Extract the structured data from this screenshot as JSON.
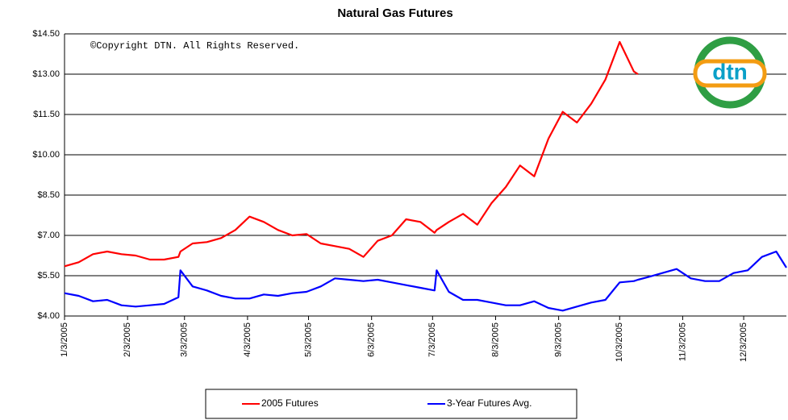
{
  "chart_data": {
    "type": "line",
    "title": "Natural Gas Futures",
    "annotation": "©Copyright DTN. All Rights Reserved.",
    "logo": "dtn",
    "x": [
      "1/3/2005",
      "1/10/2005",
      "1/17/2005",
      "1/24/2005",
      "1/31/2005",
      "2/7/2005",
      "2/14/2005",
      "2/21/2005",
      "2/28/2005",
      "3/1/2005",
      "3/7/2005",
      "3/14/2005",
      "3/21/2005",
      "3/28/2005",
      "4/4/2005",
      "4/11/2005",
      "4/18/2005",
      "4/25/2005",
      "5/2/2005",
      "5/9/2005",
      "5/16/2005",
      "5/23/2005",
      "5/30/2005",
      "6/6/2005",
      "6/13/2005",
      "6/20/2005",
      "6/27/2005",
      "7/4/2005",
      "7/5/2005",
      "7/11/2005",
      "7/18/2005",
      "7/25/2005",
      "8/1/2005",
      "8/8/2005",
      "8/15/2005",
      "8/22/2005",
      "8/29/2005",
      "9/5/2005",
      "9/12/2005",
      "9/19/2005",
      "9/26/2005",
      "10/3/2005",
      "10/10/2005",
      "10/12/2005",
      "10/17/2005",
      "10/24/2005",
      "10/31/2005",
      "11/7/2005",
      "11/14/2005",
      "11/21/2005",
      "11/28/2005",
      "12/5/2005",
      "12/12/2005",
      "12/19/2005",
      "12/24/2005"
    ],
    "series": [
      {
        "name": "2005 Futures",
        "color": "#ff0000",
        "values": [
          5.85,
          6.0,
          6.3,
          6.4,
          6.3,
          6.25,
          6.1,
          6.1,
          6.2,
          6.4,
          6.7,
          6.75,
          6.9,
          7.2,
          7.7,
          7.5,
          7.2,
          7.0,
          7.05,
          6.7,
          6.6,
          6.5,
          6.2,
          6.8,
          7.0,
          7.6,
          7.5,
          7.1,
          7.2,
          7.5,
          7.8,
          7.4,
          8.2,
          8.8,
          9.6,
          9.2,
          10.6,
          11.6,
          11.2,
          11.9,
          12.8,
          14.2,
          13.1,
          13.0,
          null,
          null,
          null,
          null,
          null,
          null,
          null,
          null,
          null,
          null,
          null
        ]
      },
      {
        "name": "3-Year Futures Avg.",
        "color": "#0000ff",
        "values": [
          4.85,
          4.75,
          4.55,
          4.6,
          4.4,
          4.35,
          4.4,
          4.45,
          4.7,
          5.7,
          5.1,
          4.95,
          4.75,
          4.65,
          4.65,
          4.8,
          4.75,
          4.85,
          4.9,
          5.1,
          5.4,
          5.35,
          5.3,
          5.35,
          5.25,
          5.15,
          5.05,
          4.95,
          5.7,
          4.9,
          4.6,
          4.6,
          4.5,
          4.4,
          4.4,
          4.55,
          4.3,
          4.2,
          4.35,
          4.5,
          4.6,
          5.25,
          5.3,
          5.35,
          5.45,
          5.6,
          5.75,
          5.4,
          5.3,
          5.3,
          5.6,
          5.7,
          6.2,
          6.4,
          5.8
        ]
      }
    ],
    "xlim": [
      "1/3/2005",
      "12/24/2005"
    ],
    "xticks": [
      "1/3/2005",
      "2/3/2005",
      "3/3/2005",
      "4/3/2005",
      "5/3/2005",
      "6/3/2005",
      "7/3/2005",
      "8/3/2005",
      "9/3/2005",
      "10/3/2005",
      "11/3/2005",
      "12/3/2005"
    ],
    "ylim": [
      4.0,
      14.5
    ],
    "yticks": [
      {
        "value": 4.0,
        "label": "$4.00"
      },
      {
        "value": 5.5,
        "label": "$5.50"
      },
      {
        "value": 7.0,
        "label": "$7.00"
      },
      {
        "value": 8.5,
        "label": "$8.50"
      },
      {
        "value": 10.0,
        "label": "$10.00"
      },
      {
        "value": 11.5,
        "label": "$11.50"
      },
      {
        "value": 13.0,
        "label": "$13.00"
      },
      {
        "value": 14.5,
        "label": "$14.50"
      }
    ],
    "grid": true
  }
}
